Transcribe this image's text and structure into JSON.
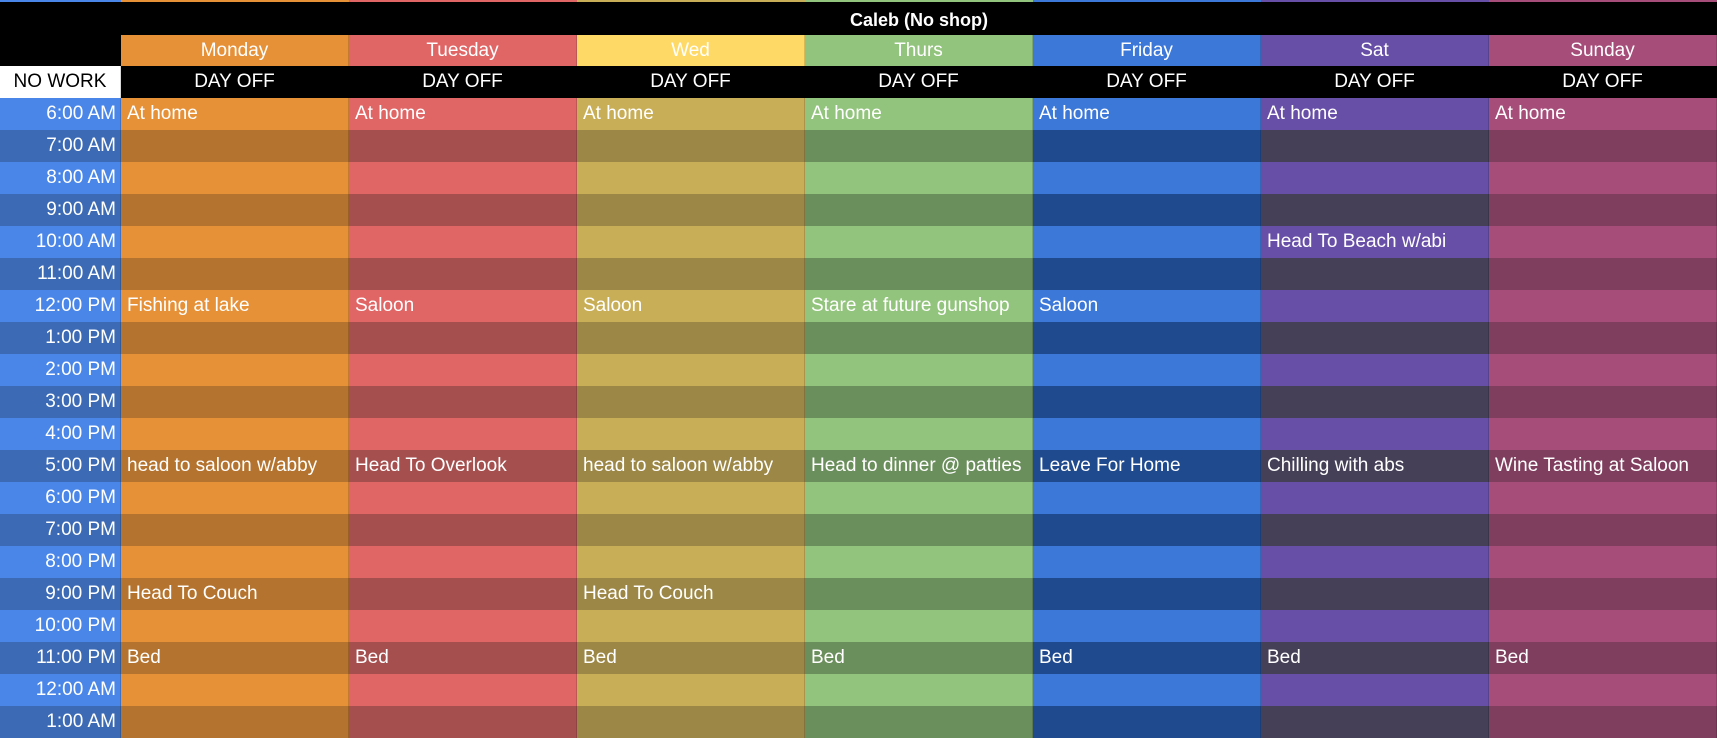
{
  "title": "Caleb (No shop)",
  "corner_label": "NO WORK",
  "time_colors": {
    "light": "#4a86e8",
    "dark": "#3c6ab4"
  },
  "days": [
    {
      "label": "Monday",
      "status": "DAY OFF",
      "header_color": "#e69138",
      "light": "#e69138",
      "dark": "#b4732e"
    },
    {
      "label": "Tuesday",
      "status": "DAY OFF",
      "header_color": "#e06666",
      "light": "#e06666",
      "dark": "#a64f4f"
    },
    {
      "label": "Wed",
      "status": "DAY OFF",
      "header_color": "#ffd966",
      "light": "#c9ae58",
      "dark": "#9c8747"
    },
    {
      "label": "Thurs",
      "status": "DAY OFF",
      "header_color": "#93c47d",
      "light": "#93c47d",
      "dark": "#6b8f5c"
    },
    {
      "label": "Friday",
      "status": "DAY OFF",
      "header_color": "#3c78d8",
      "light": "#3c78d8",
      "dark": "#1f4a8e"
    },
    {
      "label": "Sat",
      "status": "DAY OFF",
      "header_color": "#674ea7",
      "light": "#674ea7",
      "dark": "#463f58"
    },
    {
      "label": "Sunday",
      "status": "DAY OFF",
      "header_color": "#a64d79",
      "light": "#a64d79",
      "dark": "#7f3e5e"
    }
  ],
  "times": [
    "6:00 AM",
    "7:00 AM",
    "8:00 AM",
    "9:00 AM",
    "10:00 AM",
    "11:00 AM",
    "12:00 PM",
    "1:00 PM",
    "2:00 PM",
    "3:00 PM",
    "4:00 PM",
    "5:00 PM",
    "6:00 PM",
    "7:00 PM",
    "8:00 PM",
    "9:00 PM",
    "10:00 PM",
    "11:00 PM",
    "12:00 AM",
    "1:00 AM"
  ],
  "events": [
    [
      "At home",
      "",
      "",
      "",
      "",
      "",
      "Fishing at lake",
      "",
      "",
      "",
      "",
      "head to saloon w/abby",
      "",
      "",
      "",
      "Head To Couch",
      "",
      "Bed",
      "",
      ""
    ],
    [
      "At home",
      "",
      "",
      "",
      "",
      "",
      "Saloon",
      "",
      "",
      "",
      "",
      "Head To Overlook",
      "",
      "",
      "",
      "",
      "",
      "Bed",
      "",
      ""
    ],
    [
      "At home",
      "",
      "",
      "",
      "",
      "",
      "Saloon",
      "",
      "",
      "",
      "",
      "head to saloon w/abby",
      "",
      "",
      "",
      "Head To Couch",
      "",
      "Bed",
      "",
      ""
    ],
    [
      "At home",
      "",
      "",
      "",
      "",
      "",
      "Stare at future gunshop",
      "",
      "",
      "",
      "",
      "Head to dinner @ patties",
      "",
      "",
      "",
      "",
      "",
      "Bed",
      "",
      ""
    ],
    [
      "At home",
      "",
      "",
      "",
      "",
      "",
      "Saloon",
      "",
      "",
      "",
      "",
      "Leave For Home",
      "",
      "",
      "",
      "",
      "",
      "Bed",
      "",
      ""
    ],
    [
      "At home",
      "",
      "",
      "",
      "Head To Beach w/abi",
      "",
      "",
      "",
      "",
      "",
      "",
      "Chilling with abs",
      "",
      "",
      "",
      "",
      "",
      "Bed",
      "",
      ""
    ],
    [
      "At home",
      "",
      "",
      "",
      "",
      "",
      "",
      "",
      "",
      "",
      "",
      "Wine Tasting at Saloon",
      "",
      "",
      "",
      "",
      "",
      "Bed",
      "",
      ""
    ]
  ]
}
